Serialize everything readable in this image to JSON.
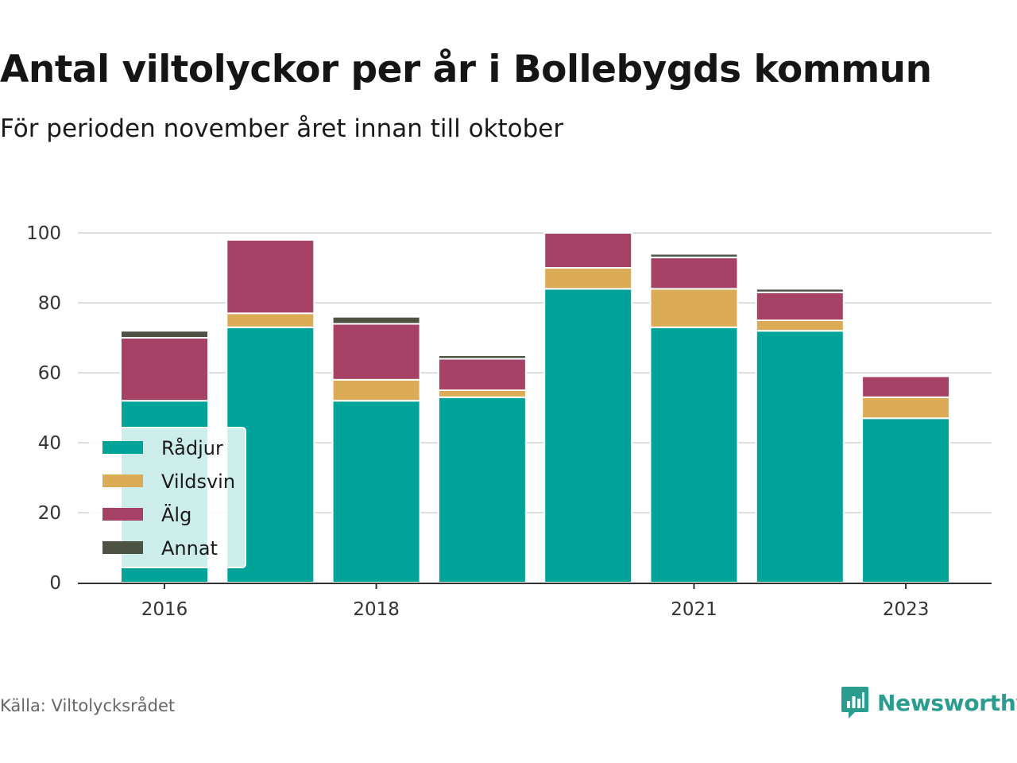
{
  "title": "Antal viltolyckor per år i Bollebygds kommun",
  "subtitle": "För perioden november året innan till oktober",
  "source": "Källa: Viltolycksrådet",
  "brand": {
    "name": "Newsworthy",
    "icon": "newsworthy-logo-icon",
    "color": "#2a9d8f"
  },
  "chart_data": {
    "type": "bar",
    "stacked": true,
    "categories": [
      2016,
      2017,
      2018,
      2019,
      2020,
      2021,
      2022,
      2023
    ],
    "x_tick_labels": [
      "2016",
      "2018",
      "2021",
      "2023"
    ],
    "y_ticks": [
      "0",
      "20",
      "40",
      "60",
      "80",
      "100"
    ],
    "ylim": [
      0,
      100
    ],
    "grid": true,
    "legend_position": "bottom-left",
    "series": [
      {
        "name": "Rådjur",
        "color": "#00a398",
        "values": [
          52,
          73,
          52,
          53,
          84,
          73,
          72,
          47
        ]
      },
      {
        "name": "Vildsvin",
        "color": "#dcab56",
        "values": [
          0,
          4,
          6,
          2,
          6,
          11,
          3,
          6
        ]
      },
      {
        "name": "Älg",
        "color": "#a54266",
        "values": [
          18,
          21,
          16,
          9,
          10,
          9,
          8,
          6
        ]
      },
      {
        "name": "Annat",
        "color": "#4d5243",
        "values": [
          2,
          0,
          2,
          1,
          0,
          1,
          1,
          0
        ]
      }
    ]
  }
}
